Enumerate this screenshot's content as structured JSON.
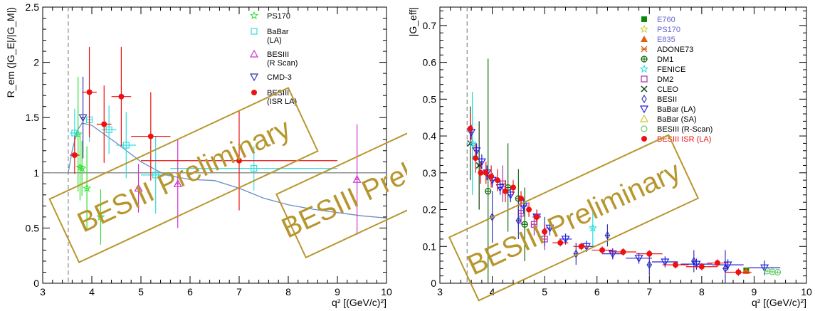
{
  "colors": {
    "watermark": "#b8962e",
    "frame": "#000000",
    "theory": "#6a8cc8",
    "unity": "#888888",
    "threshold": "#888888"
  },
  "chart_data": [
    {
      "type": "scatter",
      "xlim": [
        3,
        10
      ],
      "ylim": [
        0,
        2.5
      ],
      "xticks": [
        3,
        4,
        5,
        6,
        7,
        8,
        9,
        10
      ],
      "yticks": [
        0,
        0.5,
        1,
        1.5,
        2,
        2.5
      ],
      "ytick_labels": [
        "0",
        "0.5",
        "1",
        "1.5",
        "2",
        "2.5"
      ],
      "xlabel": "q² [(GeV/c)²]",
      "ylabel": "R_em (|G_E|/|G_M|)",
      "threshold_x": 3.52,
      "reference_line_y": 1,
      "watermark": "BESIII Preliminary",
      "legend": [
        {
          "label": "PS170",
          "sub": "",
          "color": "#33dd33",
          "marker": "star"
        },
        {
          "label": "BaBar",
          "sub": "(LA)",
          "color": "#33dddd",
          "marker": "square-open"
        },
        {
          "label": "BESIII",
          "sub": "(R Scan)",
          "color": "#cc33cc",
          "marker": "triangle-open"
        },
        {
          "label": "CMD-3",
          "sub": "",
          "color": "#3333aa",
          "marker": "triangle-down-open"
        },
        {
          "label": "BESIII",
          "sub": "(ISR LA)",
          "color": "#ee1111",
          "marker": "circle"
        }
      ],
      "series": [
        {
          "name": "PS170",
          "color": "#33dd33",
          "marker": "star",
          "points": [
            [
              3.72,
              1.35,
              0.05,
              0.52
            ],
            [
              3.76,
              1.05,
              0.03,
              0.3
            ],
            [
              3.8,
              1.04,
              0.03,
              0.25
            ],
            [
              3.9,
              0.86,
              0.04,
              0.38
            ],
            [
              4.18,
              0.6,
              0.05,
              0.25
            ]
          ]
        },
        {
          "name": "BaBar (LA)",
          "color": "#33dddd",
          "marker": "square-open",
          "points": [
            [
              3.65,
              1.36,
              0.1,
              0.22
            ],
            [
              3.95,
              1.48,
              0.05,
              0.2
            ],
            [
              4.35,
              1.39,
              0.15,
              0.22
            ],
            [
              4.7,
              1.25,
              0.2,
              0.3
            ],
            [
              5.3,
              0.98,
              0.3,
              0.35
            ],
            [
              7.3,
              1.04,
              1.7,
              0.2
            ]
          ]
        },
        {
          "name": "BESIII (R Scan)",
          "color": "#cc33cc",
          "marker": "triangle-open",
          "points": [
            [
              4.95,
              0.86,
              0.05,
              0.22
            ],
            [
              5.75,
              0.9,
              0.05,
              0.4
            ],
            [
              9.4,
              0.94,
              0.05,
              0.5
            ]
          ]
        },
        {
          "name": "CMD-3",
          "color": "#3333aa",
          "marker": "triangle-down-open",
          "points": [
            [
              3.82,
              1.5,
              0.05,
              0.37
            ]
          ]
        },
        {
          "name": "BESIII (ISR LA)",
          "color": "#ee1111",
          "marker": "circle",
          "points": [
            [
              3.65,
              1.16,
              0.1,
              0.17
            ],
            [
              3.95,
              1.73,
              0.15,
              0.41
            ],
            [
              4.25,
              1.44,
              0.15,
              0.35
            ],
            [
              4.6,
              1.69,
              0.2,
              0.45
            ],
            [
              5.2,
              1.33,
              0.4,
              0.4
            ],
            [
              7.0,
              1.11,
              2.0,
              0.45
            ]
          ]
        }
      ],
      "theory_curve": [
        [
          3.52,
          1.0
        ],
        [
          3.6,
          1.2
        ],
        [
          3.7,
          1.38
        ],
        [
          3.8,
          1.45
        ],
        [
          4.0,
          1.43
        ],
        [
          4.5,
          1.27
        ],
        [
          5.0,
          1.1
        ],
        [
          5.5,
          0.98
        ],
        [
          6.0,
          0.94
        ],
        [
          6.5,
          0.93
        ],
        [
          7.0,
          0.86
        ],
        [
          7.5,
          0.77
        ],
        [
          8.0,
          0.71
        ],
        [
          8.5,
          0.67
        ],
        [
          9.0,
          0.64
        ],
        [
          9.5,
          0.61
        ],
        [
          10.0,
          0.59
        ]
      ]
    },
    {
      "type": "scatter",
      "xlim": [
        3,
        10
      ],
      "ylim": [
        0,
        0.75
      ],
      "xticks": [
        3,
        4,
        5,
        6,
        7,
        8,
        9,
        10
      ],
      "yticks": [
        0,
        0.1,
        0.2,
        0.3,
        0.4,
        0.5,
        0.6,
        0.7
      ],
      "ytick_labels": [
        "0",
        "0.1",
        "0.2",
        "0.3",
        "0.4",
        "0.5",
        "0.6",
        "0.7"
      ],
      "xlabel": "q² [(GeV/c)²]",
      "ylabel": "|G_eff|",
      "threshold_x": 3.52,
      "watermark": "BESIII Preliminary",
      "legend": [
        {
          "label": "E760",
          "sub": "",
          "color": "#0a8a0a",
          "marker": "square",
          "text_color": "#6666cc"
        },
        {
          "label": "PS170",
          "sub": "",
          "color": "#cccc33",
          "marker": "star",
          "text_color": "#6666cc"
        },
        {
          "label": "E835",
          "sub": "",
          "color": "#e06010",
          "marker": "triangle",
          "text_color": "#6666cc"
        },
        {
          "label": "ADONE73",
          "sub": "",
          "color": "#d2691e",
          "marker": "x-star",
          "text_color": "#000000"
        },
        {
          "label": "DM1",
          "sub": "",
          "color": "#0a6a0a",
          "marker": "circle-cross",
          "text_color": "#000000"
        },
        {
          "label": "FENICE",
          "sub": "",
          "color": "#22dddd",
          "marker": "star",
          "text_color": "#000000"
        },
        {
          "label": "DM2",
          "sub": "",
          "color": "#aa33aa",
          "marker": "square-open",
          "text_color": "#000000"
        },
        {
          "label": "CLEO",
          "sub": "",
          "color": "#114411",
          "marker": "cross",
          "text_color": "#000000"
        },
        {
          "label": "BESII",
          "sub": "",
          "color": "#3333bb",
          "marker": "diamond-open",
          "text_color": "#000000"
        },
        {
          "label": "BaBar (LA)",
          "sub": "",
          "color": "#2222dd",
          "marker": "triangle-down-open",
          "text_color": "#000000"
        },
        {
          "label": "BaBar (SA)",
          "sub": "",
          "color": "#cccc33",
          "marker": "triangle-open",
          "text_color": "#000000"
        },
        {
          "label": "BESIII (R-Scan)",
          "sub": "",
          "color": "#66cc66",
          "marker": "circle-open",
          "text_color": "#000000"
        },
        {
          "label": "BESIII ISR (LA)",
          "sub": "",
          "color": "#ee1111",
          "marker": "circle",
          "text_color": "#ee1111"
        }
      ],
      "series": [
        {
          "name": "DM1",
          "color": "#0a6a0a",
          "marker": "circle-cross",
          "points": [
            [
              3.92,
              0.25,
              0.05,
              0.36
            ],
            [
              4.3,
              0.26,
              0.05,
              0.12
            ],
            [
              4.5,
              0.23,
              0.05,
              0.08
            ],
            [
              4.62,
              0.16,
              0.04,
              0.1
            ]
          ]
        },
        {
          "name": "CLEO",
          "color": "#114411",
          "marker": "cross",
          "points": [
            [
              3.58,
              0.38,
              0.02,
              0.1
            ],
            [
              3.75,
              0.32,
              0.03,
              0.12
            ]
          ]
        },
        {
          "name": "FENICE",
          "color": "#22dddd",
          "marker": "star",
          "points": [
            [
              3.62,
              0.38,
              0.04,
              0.14
            ],
            [
              5.92,
              0.15,
              0.03,
              0.05
            ]
          ]
        },
        {
          "name": "DM2",
          "color": "#aa33aa",
          "marker": "square-open",
          "points": [
            [
              4.2,
              0.27,
              0.05,
              0.05
            ],
            [
              4.55,
              0.19,
              0.05,
              0.03
            ],
            [
              4.8,
              0.16,
              0.05,
              0.03
            ],
            [
              5.0,
              0.12,
              0.05,
              0.03
            ]
          ]
        },
        {
          "name": "BESII",
          "color": "#3333bb",
          "marker": "diamond-open",
          "points": [
            [
              4.0,
              0.18,
              0.05,
              0.07
            ],
            [
              4.5,
              0.17,
              0.05,
              0.05
            ],
            [
              5.0,
              0.14,
              0.05,
              0.04
            ],
            [
              5.6,
              0.08,
              0.05,
              0.03
            ],
            [
              6.2,
              0.13,
              0.05,
              0.03
            ],
            [
              7.0,
              0.05,
              0.05,
              0.03
            ],
            [
              7.85,
              0.06,
              0.05,
              0.03
            ],
            [
              8.45,
              0.04,
              0.05,
              0.05
            ]
          ]
        },
        {
          "name": "BaBar (LA)",
          "color": "#2222dd",
          "marker": "triangle-down-open",
          "points": [
            [
              3.6,
              0.41,
              0.03,
              0.02
            ],
            [
              3.7,
              0.36,
              0.03,
              0.02
            ],
            [
              3.8,
              0.33,
              0.03,
              0.02
            ],
            [
              3.9,
              0.3,
              0.03,
              0.02
            ],
            [
              4.0,
              0.28,
              0.05,
              0.02
            ],
            [
              4.15,
              0.26,
              0.05,
              0.02
            ],
            [
              4.35,
              0.24,
              0.05,
              0.02
            ],
            [
              4.6,
              0.21,
              0.08,
              0.02
            ],
            [
              4.85,
              0.18,
              0.08,
              0.02
            ],
            [
              5.1,
              0.15,
              0.08,
              0.02
            ],
            [
              5.4,
              0.12,
              0.12,
              0.015
            ],
            [
              5.8,
              0.1,
              0.15,
              0.015
            ],
            [
              6.3,
              0.08,
              0.2,
              0.015
            ],
            [
              6.8,
              0.068,
              0.25,
              0.015
            ],
            [
              7.3,
              0.058,
              0.25,
              0.015
            ],
            [
              7.9,
              0.052,
              0.3,
              0.015
            ],
            [
              8.5,
              0.05,
              0.3,
              0.015
            ],
            [
              9.2,
              0.042,
              0.3,
              0.02
            ]
          ]
        },
        {
          "name": "E760",
          "color": "#0a8a0a",
          "marker": "square",
          "points": [
            [
              8.85,
              0.035,
              0.05,
              0.005
            ]
          ]
        },
        {
          "name": "E835",
          "color": "#e06010",
          "marker": "triangle",
          "points": [
            [
              8.85,
              0.033,
              0.05,
              0.005
            ]
          ]
        },
        {
          "name": "BESIII (R-Scan)",
          "color": "#66cc66",
          "marker": "circle-open",
          "points": [
            [
              9.25,
              0.033,
              0.05,
              0.004
            ],
            [
              9.35,
              0.031,
              0.05,
              0.004
            ],
            [
              9.45,
              0.03,
              0.05,
              0.004
            ]
          ]
        },
        {
          "name": "BESIII ISR (LA)",
          "color": "#ee1111",
          "marker": "circle",
          "points": [
            [
              3.58,
              0.42,
              0.03,
              0.04
            ],
            [
              3.68,
              0.34,
              0.03,
              0.04
            ],
            [
              3.78,
              0.3,
              0.03,
              0.03
            ],
            [
              3.88,
              0.3,
              0.03,
              0.03
            ],
            [
              3.98,
              0.29,
              0.03,
              0.03
            ],
            [
              4.1,
              0.28,
              0.05,
              0.03
            ],
            [
              4.25,
              0.25,
              0.05,
              0.03
            ],
            [
              4.4,
              0.26,
              0.05,
              0.02
            ],
            [
              4.55,
              0.23,
              0.05,
              0.02
            ],
            [
              4.7,
              0.2,
              0.05,
              0.02
            ],
            [
              4.85,
              0.18,
              0.05,
              0.02
            ],
            [
              5.0,
              0.14,
              0.05,
              0.02
            ],
            [
              5.3,
              0.11,
              0.15,
              0.01
            ],
            [
              5.7,
              0.1,
              0.15,
              0.01
            ],
            [
              6.1,
              0.09,
              0.2,
              0.01
            ],
            [
              6.5,
              0.085,
              0.25,
              0.01
            ],
            [
              7.0,
              0.08,
              0.25,
              0.01
            ],
            [
              7.5,
              0.05,
              0.25,
              0.01
            ],
            [
              8.0,
              0.045,
              0.3,
              0.01
            ],
            [
              8.3,
              0.055,
              0.2,
              0.01
            ],
            [
              8.7,
              0.03,
              0.25,
              0.01
            ]
          ]
        }
      ]
    }
  ]
}
